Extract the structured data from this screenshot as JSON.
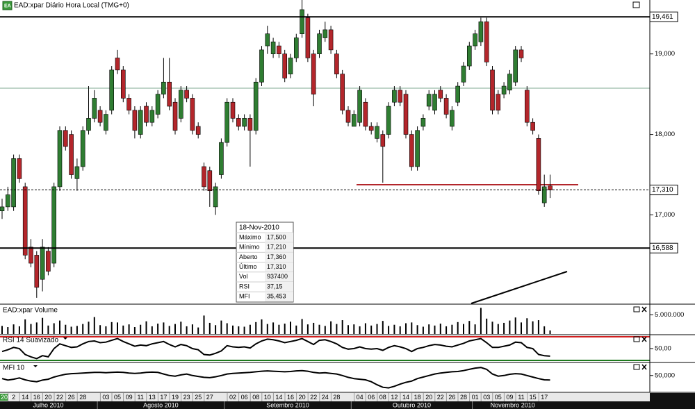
{
  "chart_data": [
    {
      "type": "candlestick",
      "title": "EAD:xpar Diário Hora Local (TMG+0)",
      "categories": [
        null,
        null,
        "2",
        null,
        "14",
        null,
        "16",
        null,
        "20",
        null,
        "22",
        null,
        "26",
        null,
        "28",
        null,
        null,
        null,
        "03",
        null,
        "05",
        null,
        "09",
        null,
        "11",
        null,
        "13",
        null,
        "17",
        null,
        "19",
        null,
        "23",
        null,
        "25",
        null,
        "27",
        null,
        null,
        null,
        "02",
        null,
        "06",
        null,
        "08",
        null,
        "10",
        null,
        "14",
        null,
        "16",
        null,
        "20",
        null,
        "22",
        null,
        "24",
        null,
        "28",
        null,
        null,
        null,
        "04",
        null,
        "06",
        null,
        "08",
        null,
        "12",
        null,
        "14",
        null,
        "18",
        null,
        "20",
        null,
        "22",
        null,
        "26",
        null,
        "28",
        null,
        "01",
        null,
        "03",
        null,
        "05",
        null,
        "09",
        null,
        "11",
        null,
        "15",
        null,
        "17",
        null
      ],
      "year": "2010",
      "months": [
        "Julho 2010",
        "Agosto 2010",
        "Setembro 2010",
        "Outubro 2010",
        "Novembro 2010"
      ],
      "open": [
        17.05,
        17.1,
        17.1,
        17.7,
        17.35,
        16.6,
        16.5,
        16.2,
        16.55,
        16.4,
        17.35,
        18.05,
        18.0,
        17.45,
        17.6,
        18.05,
        18.2,
        18.3,
        18.05,
        18.3,
        18.95,
        18.8,
        18.45,
        18.3,
        18.0,
        18.35,
        18.15,
        18.25,
        18.5,
        18.65,
        18.4,
        18.2,
        18.55,
        18.45,
        18.1,
        17.6,
        17.55,
        17.1,
        17.5,
        17.9,
        18.4,
        18.2,
        18.1,
        18.2,
        18.05,
        18.65,
        19.1,
        19.0,
        19.1,
        19.0,
        18.75,
        18.95,
        19.25,
        19.45,
        19.0,
        19.0,
        19.2,
        19.3,
        19.0,
        18.75,
        18.3,
        18.1,
        18.15,
        18.4,
        18.1,
        17.95,
        18.0,
        18.0,
        18.4,
        18.55,
        18.5,
        18.0,
        17.6,
        18.1,
        18.35,
        18.3,
        18.55,
        18.45,
        18.1,
        18.4,
        18.65,
        18.85,
        19.1,
        19.15,
        19.4,
        18.8,
        18.5,
        18.5,
        18.55,
        18.65,
        19.05,
        18.55,
        18.15,
        17.95,
        17.15,
        17.36
      ],
      "high": [
        17.2,
        17.35,
        17.75,
        17.75,
        17.4,
        16.7,
        16.55,
        16.7,
        16.6,
        17.4,
        18.1,
        18.1,
        18.05,
        17.7,
        18.1,
        18.6,
        18.55,
        18.35,
        18.3,
        18.85,
        19.05,
        18.85,
        18.5,
        18.35,
        18.35,
        18.4,
        18.35,
        18.55,
        18.95,
        18.95,
        18.45,
        18.6,
        18.6,
        18.5,
        18.15,
        17.65,
        17.6,
        17.4,
        17.95,
        18.45,
        18.45,
        18.25,
        18.25,
        18.25,
        18.7,
        19.1,
        19.35,
        19.2,
        19.15,
        19.05,
        19.0,
        19.25,
        19.75,
        19.5,
        19.05,
        19.3,
        19.4,
        19.35,
        19.05,
        18.8,
        18.35,
        18.3,
        18.6,
        18.45,
        18.15,
        18.15,
        18.05,
        18.4,
        18.6,
        18.6,
        18.55,
        18.05,
        18.1,
        18.25,
        18.55,
        18.55,
        18.6,
        18.5,
        18.35,
        18.65,
        18.9,
        19.15,
        19.3,
        19.45,
        19.45,
        18.85,
        18.55,
        18.65,
        18.8,
        19.1,
        19.1,
        18.6,
        18.2,
        18.0,
        17.5,
        17.5
      ],
      "low": [
        16.95,
        17.05,
        17.05,
        17.4,
        16.45,
        16.35,
        15.97,
        16.05,
        16.25,
        16.35,
        17.3,
        17.8,
        17.45,
        17.3,
        17.55,
        18.0,
        18.15,
        18.1,
        18.0,
        18.25,
        18.75,
        18.4,
        18.25,
        17.95,
        17.95,
        18.1,
        18.1,
        18.2,
        18.45,
        18.3,
        18.0,
        18.15,
        18.4,
        18.0,
        17.95,
        17.3,
        17.1,
        17.0,
        17.45,
        17.85,
        18.15,
        18.05,
        18.05,
        17.6,
        18.0,
        18.6,
        19.0,
        18.95,
        18.95,
        18.65,
        18.7,
        18.9,
        19.2,
        18.9,
        18.35,
        18.95,
        19.15,
        19.0,
        18.7,
        18.25,
        18.1,
        18.1,
        18.1,
        18.05,
        18.0,
        17.9,
        17.4,
        17.95,
        18.35,
        18.35,
        17.95,
        17.55,
        17.55,
        18.05,
        18.3,
        18.25,
        18.4,
        18.2,
        18.05,
        18.35,
        18.6,
        18.8,
        19.05,
        19.1,
        18.85,
        18.25,
        18.25,
        18.45,
        18.5,
        18.6,
        18.9,
        18.1,
        18.0,
        17.25,
        17.1,
        17.21
      ],
      "close": [
        17.1,
        17.25,
        17.7,
        17.45,
        16.5,
        16.4,
        16.1,
        16.6,
        16.3,
        17.35,
        18.05,
        17.85,
        17.5,
        17.6,
        18.05,
        18.2,
        18.45,
        18.15,
        18.25,
        18.8,
        18.8,
        18.45,
        18.3,
        18.05,
        18.3,
        18.15,
        18.3,
        18.5,
        18.65,
        18.35,
        18.05,
        18.55,
        18.45,
        18.05,
        18.0,
        17.35,
        17.3,
        17.35,
        17.9,
        18.4,
        18.2,
        18.1,
        18.2,
        18.05,
        18.65,
        19.05,
        19.25,
        19.15,
        19.0,
        18.7,
        18.95,
        19.2,
        19.55,
        18.95,
        18.5,
        19.25,
        19.3,
        19.05,
        18.75,
        18.3,
        18.15,
        18.25,
        18.55,
        18.1,
        18.05,
        18.1,
        17.85,
        18.35,
        18.55,
        18.4,
        18.0,
        17.6,
        18.05,
        18.2,
        18.5,
        18.5,
        18.45,
        18.25,
        18.3,
        18.6,
        18.85,
        19.1,
        19.25,
        19.4,
        18.9,
        18.3,
        18.3,
        18.6,
        18.75,
        19.05,
        18.95,
        18.15,
        18.05,
        17.3,
        17.35,
        17.31
      ],
      "up_color": "#2f7d32",
      "down_color": "#b3262b",
      "ylim": [
        15.9,
        19.67
      ],
      "yticks": [
        {
          "value": 19,
          "label": "19,000"
        },
        {
          "value": 18,
          "label": "18,000"
        },
        {
          "value": 17,
          "label": "17,000"
        }
      ],
      "price_lines": [
        {
          "value": 19.461,
          "label": "19,461",
          "style": "solid"
        },
        {
          "value": 17.31,
          "label": "17,310",
          "style": "dashed"
        },
        {
          "value": 16.588,
          "label": "16,588",
          "style": "solid"
        }
      ]
    },
    {
      "type": "bar",
      "title": "EAD:xpar Volume",
      "color": "#000000",
      "values": [
        2100000,
        1800000,
        2500000,
        2000000,
        3800000,
        2600000,
        3000000,
        4200000,
        2200000,
        2800000,
        3500000,
        2400000,
        1900000,
        2100000,
        2600000,
        3200000,
        4400000,
        2300000,
        2000000,
        3100000,
        3000000,
        2200000,
        2500000,
        1800000,
        2400000,
        3300000,
        2000000,
        2700000,
        3000000,
        2100000,
        2600000,
        3200000,
        2000000,
        2500000,
        1700000,
        4800000,
        2900000,
        2300000,
        3500000,
        2800000,
        2200000,
        2000000,
        1900000,
        2400000,
        3100000,
        3800000,
        2600000,
        3000000,
        2400000,
        2700000,
        3200000,
        2200000,
        3900000,
        2500000,
        2900000,
        2400000,
        2100000,
        3300000,
        2600000,
        3600000,
        2300000,
        2500000,
        2000000,
        2800000,
        2200000,
        2600000,
        3400000,
        2100000,
        2400000,
        2000000,
        2800000,
        3000000,
        2300000,
        1900000,
        2500000,
        2200000,
        2700000,
        2000000,
        2400000,
        3100000,
        2600000,
        3400000,
        2500000,
        6800000,
        4000000,
        3200000,
        2600000,
        2900000,
        3500000,
        4300000,
        3000000,
        4100000,
        3300000,
        3600000,
        2000000,
        937400
      ],
      "ylim": [
        0,
        7400000
      ],
      "yticks": [
        {
          "value": 5000000,
          "label": "5.000.000"
        }
      ]
    },
    {
      "type": "line",
      "title": "RSI 14 Suavizado",
      "color": "#000000",
      "values": [
        45,
        48,
        52,
        50,
        40,
        36,
        33,
        38,
        36,
        50,
        58,
        55,
        52,
        53,
        58,
        62,
        63,
        60,
        61,
        64,
        67,
        62,
        58,
        54,
        56,
        55,
        58,
        60,
        62,
        57,
        53,
        57,
        55,
        50,
        48,
        40,
        39,
        42,
        46,
        55,
        53,
        52,
        53,
        51,
        58,
        63,
        66,
        65,
        63,
        60,
        62,
        64,
        67,
        62,
        57,
        64,
        65,
        62,
        58,
        52,
        49,
        50,
        53,
        50,
        49,
        50,
        47,
        52,
        55,
        53,
        50,
        45,
        50,
        52,
        55,
        57,
        56,
        54,
        53,
        56,
        59,
        63,
        65,
        67,
        60,
        52,
        52,
        54,
        56,
        61,
        60,
        52,
        50,
        40,
        38,
        37.15
      ],
      "ylim": [
        27.6,
        72.4
      ],
      "yticks": [
        {
          "value": 50,
          "label": "50,00"
        }
      ],
      "levels": [
        70,
        30
      ],
      "level_colors": [
        "#d11f1f",
        "#1e7a1e"
      ]
    },
    {
      "type": "line",
      "title": "MFI 10",
      "color": "#000000",
      "values": [
        40,
        35,
        38,
        42,
        36,
        32,
        30,
        35,
        38,
        45,
        50,
        54,
        56,
        57,
        58,
        59,
        60,
        60,
        59,
        60,
        61,
        60,
        58,
        57,
        58,
        60,
        61,
        60,
        55,
        50,
        48,
        52,
        55,
        50,
        47,
        44,
        43,
        46,
        50,
        55,
        57,
        58,
        59,
        60,
        62,
        64,
        65,
        64,
        63,
        62,
        63,
        65,
        66,
        64,
        60,
        58,
        59,
        57,
        55,
        50,
        44,
        40,
        38,
        36,
        30,
        20,
        12,
        10,
        15,
        22,
        28,
        32,
        40,
        45,
        50,
        55,
        58,
        60,
        62,
        63,
        66,
        70,
        74,
        76,
        70,
        55,
        48,
        50,
        54,
        56,
        55,
        50,
        45,
        40,
        36,
        35.453
      ],
      "ylim": [
        0,
        90
      ],
      "yticks": [
        {
          "value": 50,
          "label": "50,000"
        }
      ]
    }
  ],
  "info_box": {
    "date": "18-Nov-2010",
    "rows": [
      [
        "Máximo",
        "17,500"
      ],
      [
        "Mínimo",
        "17,210"
      ],
      [
        "Aberto",
        "17,360"
      ],
      [
        "Último",
        "17,310"
      ],
      [
        "Vol",
        "937400"
      ],
      [
        "RSI",
        "37,15"
      ],
      [
        "MFI",
        "35,453"
      ]
    ]
  }
}
